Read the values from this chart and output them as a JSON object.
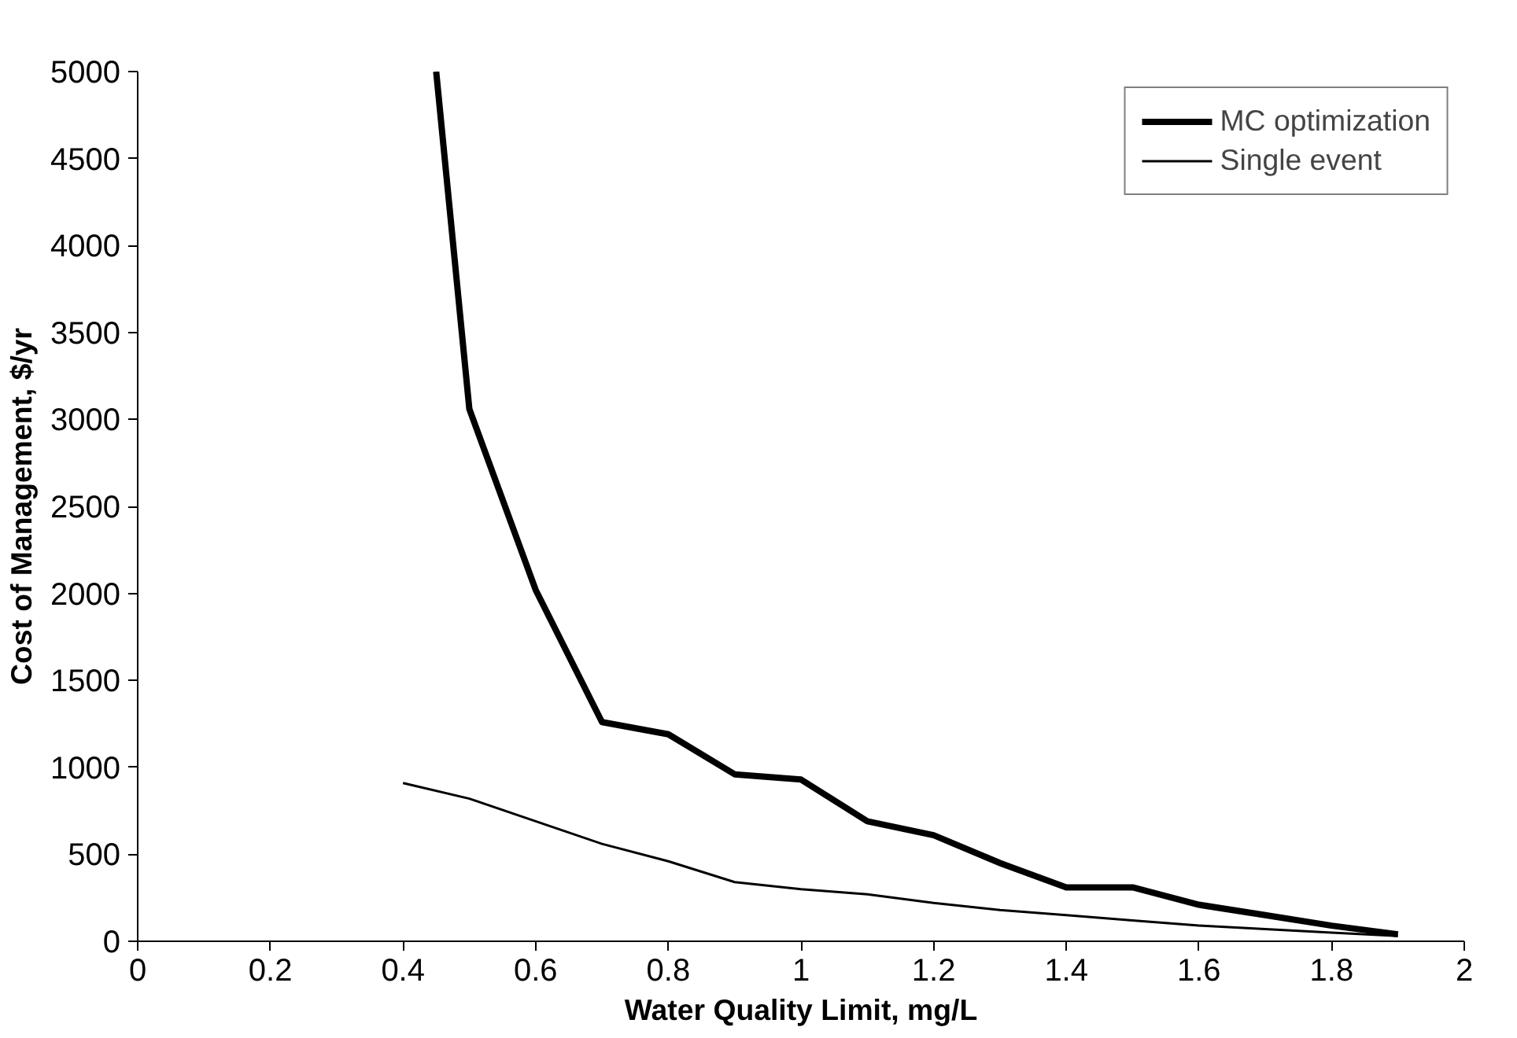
{
  "chart_data": {
    "type": "line",
    "xlabel": "Water Quality Limit, mg/L",
    "ylabel": "Cost of Management, $/yr",
    "xlim": [
      0,
      2
    ],
    "xticks": [
      0,
      0.2,
      0.4,
      0.6,
      0.8,
      1,
      1.2,
      1.4,
      1.6,
      1.8,
      2
    ],
    "ylim": [
      0,
      5000
    ],
    "yticks": [
      0,
      500,
      1000,
      1500,
      2000,
      2500,
      3000,
      3500,
      4000,
      4500,
      5000
    ],
    "grid": false,
    "legend": "top right",
    "marker": "none",
    "line_style": "solid",
    "series": [
      {
        "name": "MC optimization",
        "color": "#000000",
        "x": [
          0.45,
          0.5,
          0.6,
          0.7,
          0.8,
          0.9,
          1.0,
          1.1,
          1.2,
          1.3,
          1.4,
          1.5,
          1.6,
          1.7,
          1.8,
          1.9
        ],
        "values": [
          5000,
          3060,
          2020,
          1260,
          1190,
          960,
          930,
          690,
          610,
          450,
          310,
          310,
          210,
          150,
          90,
          40
        ]
      },
      {
        "name": "Single event",
        "color": "#000000",
        "x": [
          0.4,
          0.5,
          0.6,
          0.7,
          0.8,
          0.9,
          1.0,
          1.1,
          1.2,
          1.3,
          1.4,
          1.5,
          1.6,
          1.7,
          1.8,
          1.9
        ],
        "values": [
          910,
          820,
          690,
          560,
          460,
          340,
          300,
          270,
          220,
          180,
          150,
          120,
          90,
          70,
          50,
          30
        ]
      }
    ]
  }
}
